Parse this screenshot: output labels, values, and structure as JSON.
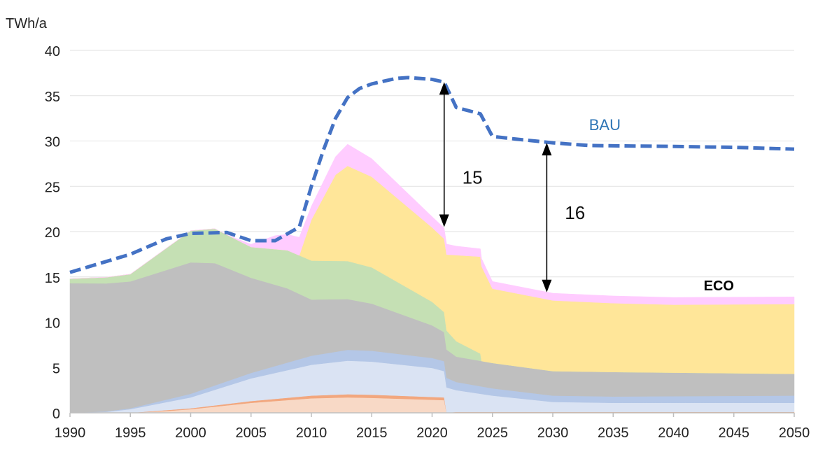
{
  "chart_data": {
    "type": "area",
    "ylabel": "TWh/a",
    "xlim": [
      1990,
      2050
    ],
    "ylim": [
      0,
      40
    ],
    "x_ticks": [
      1990,
      1995,
      2000,
      2005,
      2010,
      2015,
      2020,
      2025,
      2030,
      2035,
      2040,
      2045,
      2050
    ],
    "y_ticks": [
      0,
      5,
      10,
      15,
      20,
      25,
      30,
      35,
      40
    ],
    "grid": "horizontal",
    "series": [
      {
        "color": "#f8d9c6",
        "points": [
          [
            1990,
            0
          ],
          [
            1995,
            0
          ],
          [
            1998,
            0.2
          ],
          [
            2000,
            0.4
          ],
          [
            2005,
            1.1
          ],
          [
            2010,
            1.6
          ],
          [
            2013,
            1.7
          ],
          [
            2015,
            1.65
          ],
          [
            2021,
            1.4
          ],
          [
            2021.2,
            0
          ],
          [
            2050,
            0
          ]
        ]
      },
      {
        "color": "#f2a77e",
        "points": [
          [
            1990,
            0
          ],
          [
            1995,
            0
          ],
          [
            1998,
            0.1
          ],
          [
            2000,
            0.1
          ],
          [
            2005,
            0.2
          ],
          [
            2010,
            0.3
          ],
          [
            2013,
            0.35
          ],
          [
            2015,
            0.35
          ],
          [
            2021,
            0.3
          ],
          [
            2021.2,
            0
          ],
          [
            2022,
            0.1
          ],
          [
            2025,
            0.1
          ],
          [
            2050,
            0.1
          ]
        ]
      },
      {
        "color": "#dae3f3",
        "points": [
          [
            1990,
            0
          ],
          [
            1993,
            0.1
          ],
          [
            1995,
            0.4
          ],
          [
            2000,
            1.2
          ],
          [
            2005,
            2.5
          ],
          [
            2010,
            3.4
          ],
          [
            2013,
            3.7
          ],
          [
            2015,
            3.65
          ],
          [
            2020,
            3.2
          ],
          [
            2021,
            2.9
          ],
          [
            2022,
            2.4
          ],
          [
            2025,
            1.8
          ],
          [
            2030,
            1.1
          ],
          [
            2035,
            1.0
          ],
          [
            2050,
            1.0
          ]
        ]
      },
      {
        "color": "#b4c7e7",
        "points": [
          [
            1990,
            0
          ],
          [
            1995,
            0.1
          ],
          [
            2000,
            0.4
          ],
          [
            2005,
            0.6
          ],
          [
            2010,
            1.0
          ],
          [
            2013,
            1.2
          ],
          [
            2015,
            1.2
          ],
          [
            2020,
            1.1
          ],
          [
            2021,
            1.1
          ],
          [
            2022,
            0.9
          ],
          [
            2025,
            0.8
          ],
          [
            2030,
            0.7
          ],
          [
            2035,
            0.7
          ],
          [
            2050,
            0.8
          ]
        ]
      },
      {
        "color": "#bfbfbf",
        "points": [
          [
            1990,
            14.3
          ],
          [
            1995,
            14.0
          ],
          [
            2000,
            14.5
          ],
          [
            2002,
            13.5
          ],
          [
            2005,
            10.5
          ],
          [
            2008,
            8.2
          ],
          [
            2010,
            6.2
          ],
          [
            2013,
            5.6
          ],
          [
            2015,
            5.2
          ],
          [
            2020,
            3.6
          ],
          [
            2021,
            3.2
          ],
          [
            2022,
            2.8
          ],
          [
            2025,
            2.8
          ],
          [
            2030,
            2.7
          ],
          [
            2035,
            2.7
          ],
          [
            2050,
            2.4
          ]
        ]
      },
      {
        "color": "#c5e0b4",
        "points": [
          [
            1990,
            0.5
          ],
          [
            1995,
            0.8
          ],
          [
            2000,
            3.5
          ],
          [
            2002,
            3.8
          ],
          [
            2005,
            3.4
          ],
          [
            2008,
            4.2
          ],
          [
            2010,
            4.3
          ],
          [
            2013,
            4.2
          ],
          [
            2015,
            4.0
          ],
          [
            2020,
            2.6
          ],
          [
            2021,
            2.2
          ],
          [
            2022,
            1.7
          ],
          [
            2024,
            0.8
          ],
          [
            2024.1,
            0
          ],
          [
            2050,
            0
          ]
        ]
      },
      {
        "color": "#ffe699",
        "points": [
          [
            1990,
            0
          ],
          [
            2009,
            0
          ],
          [
            2010,
            4.5
          ],
          [
            2011,
            7
          ],
          [
            2012,
            9.5
          ],
          [
            2013,
            10.5
          ],
          [
            2015,
            10.0
          ],
          [
            2020,
            8.2
          ],
          [
            2021,
            8.1
          ],
          [
            2022,
            9.5
          ],
          [
            2024,
            10.7
          ],
          [
            2025,
            8.2
          ],
          [
            2030,
            7.8
          ],
          [
            2035,
            7.6
          ],
          [
            2040,
            7.5
          ],
          [
            2050,
            7.7
          ]
        ]
      },
      {
        "color": "#ffccff",
        "points": [
          [
            1990,
            0
          ],
          [
            2003,
            0
          ],
          [
            2005,
            0.3
          ],
          [
            2007,
            1.5
          ],
          [
            2009,
            2.0
          ],
          [
            2010,
            1.5
          ],
          [
            2012,
            2.0
          ],
          [
            2013,
            2.4
          ],
          [
            2015,
            2.0
          ],
          [
            2020,
            1.2
          ],
          [
            2021,
            1.2
          ],
          [
            2022,
            1.0
          ],
          [
            2025,
            0.8
          ],
          [
            2030,
            0.8
          ],
          [
            2035,
            0.8
          ],
          [
            2040,
            0.8
          ],
          [
            2050,
            0.8
          ]
        ]
      }
    ],
    "bau_line": {
      "name": "BAU",
      "color": "#4472c4",
      "label_color": "#2e75b6",
      "points": [
        [
          1990,
          15.5
        ],
        [
          1995,
          17.5
        ],
        [
          1998,
          19.2
        ],
        [
          2000,
          19.8
        ],
        [
          2003,
          19.9
        ],
        [
          2005,
          19.0
        ],
        [
          2007,
          19.0
        ],
        [
          2009,
          20.5
        ],
        [
          2010,
          25
        ],
        [
          2011,
          29
        ],
        [
          2012,
          32.5
        ],
        [
          2013,
          34.8
        ],
        [
          2014,
          35.8
        ],
        [
          2015,
          36.3
        ],
        [
          2017,
          36.9
        ],
        [
          2018,
          37.0
        ],
        [
          2020,
          36.8
        ],
        [
          2021,
          36.5
        ],
        [
          2022,
          33.7
        ],
        [
          2024,
          33.0
        ],
        [
          2025,
          30.5
        ],
        [
          2027,
          30.2
        ],
        [
          2030,
          29.8
        ],
        [
          2033,
          29.5
        ],
        [
          2040,
          29.4
        ],
        [
          2045,
          29.3
        ],
        [
          2050,
          29.1
        ]
      ],
      "label_pos": [
        2033,
        31.2
      ]
    },
    "eco_label": {
      "text": "ECO",
      "pos": [
        2042.5,
        13.5
      ]
    },
    "annotations": [
      {
        "text": "15",
        "x": 2021,
        "y_top": 36.5,
        "y_bottom": 20.5,
        "label_pos": [
          2022.5,
          25.3
        ]
      },
      {
        "text": "16",
        "x": 2029.5,
        "y_top": 29.8,
        "y_bottom": 13.3,
        "label_pos": [
          2031,
          21.4
        ]
      }
    ]
  }
}
